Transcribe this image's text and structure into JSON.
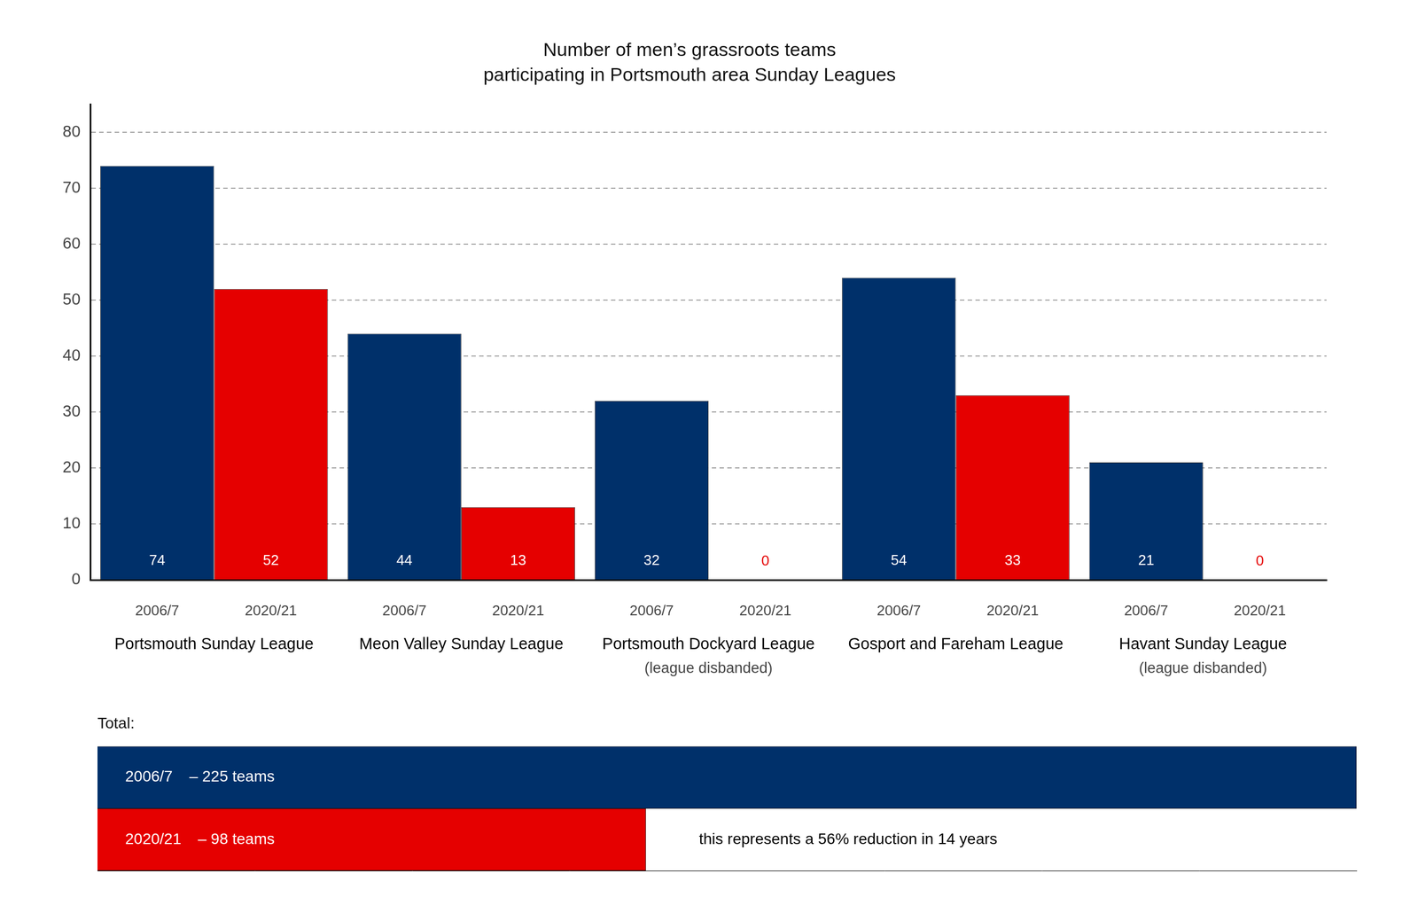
{
  "chart_data": [
    {
      "type": "bar",
      "title": [
        "Number of men’s grassroots teams",
        "participating in Portsmouth area Sunday Leagues"
      ],
      "categories": [
        "Portsmouth Sunday League",
        "Meon Valley Sunday League",
        "Portsmouth Dockyard League",
        "Gosport and Fareham League",
        "Havant Sunday League"
      ],
      "category_notes": [
        null,
        null,
        "(league disbanded)",
        null,
        "(league disbanded)"
      ],
      "series": [
        {
          "name": "2006/7",
          "color": "#00306a",
          "values": [
            74,
            44,
            32,
            54,
            21
          ]
        },
        {
          "name": "2020/21",
          "color": "#e50000",
          "values": [
            52,
            13,
            0,
            33,
            0
          ]
        }
      ],
      "ylim": [
        0,
        85
      ],
      "yticks": [
        0,
        10,
        20,
        30,
        40,
        50,
        60,
        70,
        80
      ],
      "grid": true,
      "data_labels": true
    },
    {
      "type": "bar",
      "orientation": "horizontal",
      "title": "Total:",
      "categories": [
        "2006/7",
        "2020/21"
      ],
      "values": [
        225,
        98
      ],
      "value_labels": [
        "– 225 teams",
        "– 98 teams"
      ],
      "colors": [
        "#00306a",
        "#e50000"
      ],
      "xlim": [
        0,
        225
      ],
      "tick_labels": false,
      "grid": false,
      "data_labels": true,
      "annotation": "this represents a 56% reduction in 14 years"
    }
  ]
}
